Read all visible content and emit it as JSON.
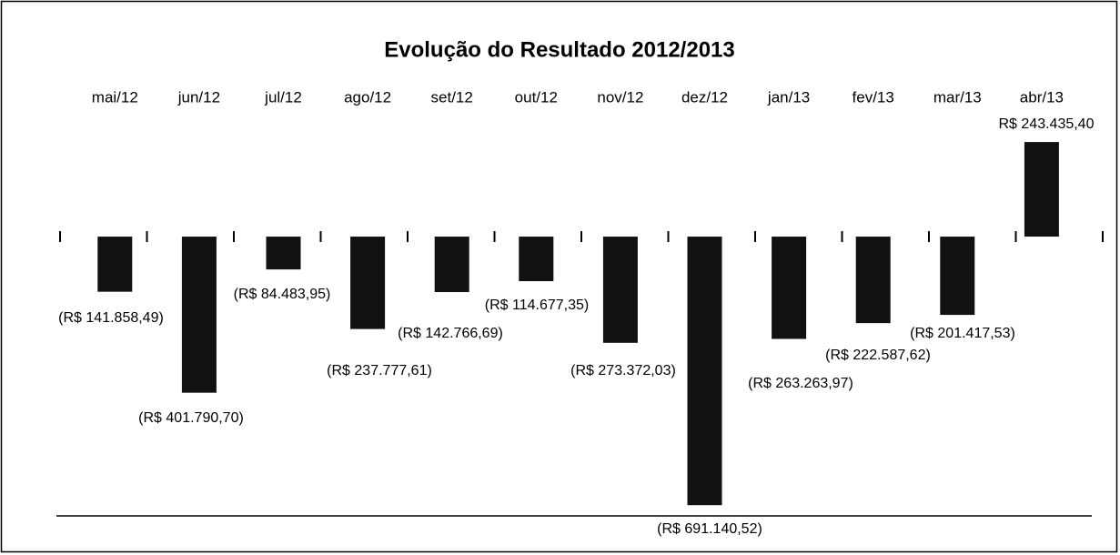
{
  "chart_data": {
    "type": "bar",
    "title": "Evolução do Resultado 2012/2013",
    "categories": [
      "mai/12",
      "jun/12",
      "jul/12",
      "ago/12",
      "set/12",
      "out/12",
      "nov/12",
      "dez/12",
      "jan/13",
      "fev/13",
      "mar/13",
      "abr/13"
    ],
    "values": [
      -141858.49,
      -401790.7,
      -84483.95,
      -237777.61,
      -142766.69,
      -114677.35,
      -273372.03,
      -691140.52,
      -263263.97,
      -222587.62,
      -201417.53,
      243435.4
    ],
    "value_labels": [
      "(R$ 141.858,49)",
      "(R$ 401.790,70)",
      "(R$ 84.483,95)",
      "(R$ 237.777,61)",
      "(R$ 142.766,69)",
      "(R$ 114.677,35)",
      "(R$ 273.372,03)",
      "(R$ 691.140,52)",
      "(R$ 263.263,97)",
      "(R$ 222.587,62)",
      "(R$ 201.417,53)",
      "R$ 243.435,40"
    ],
    "color": "#111111",
    "ylim": [
      -700000,
      250000
    ]
  }
}
